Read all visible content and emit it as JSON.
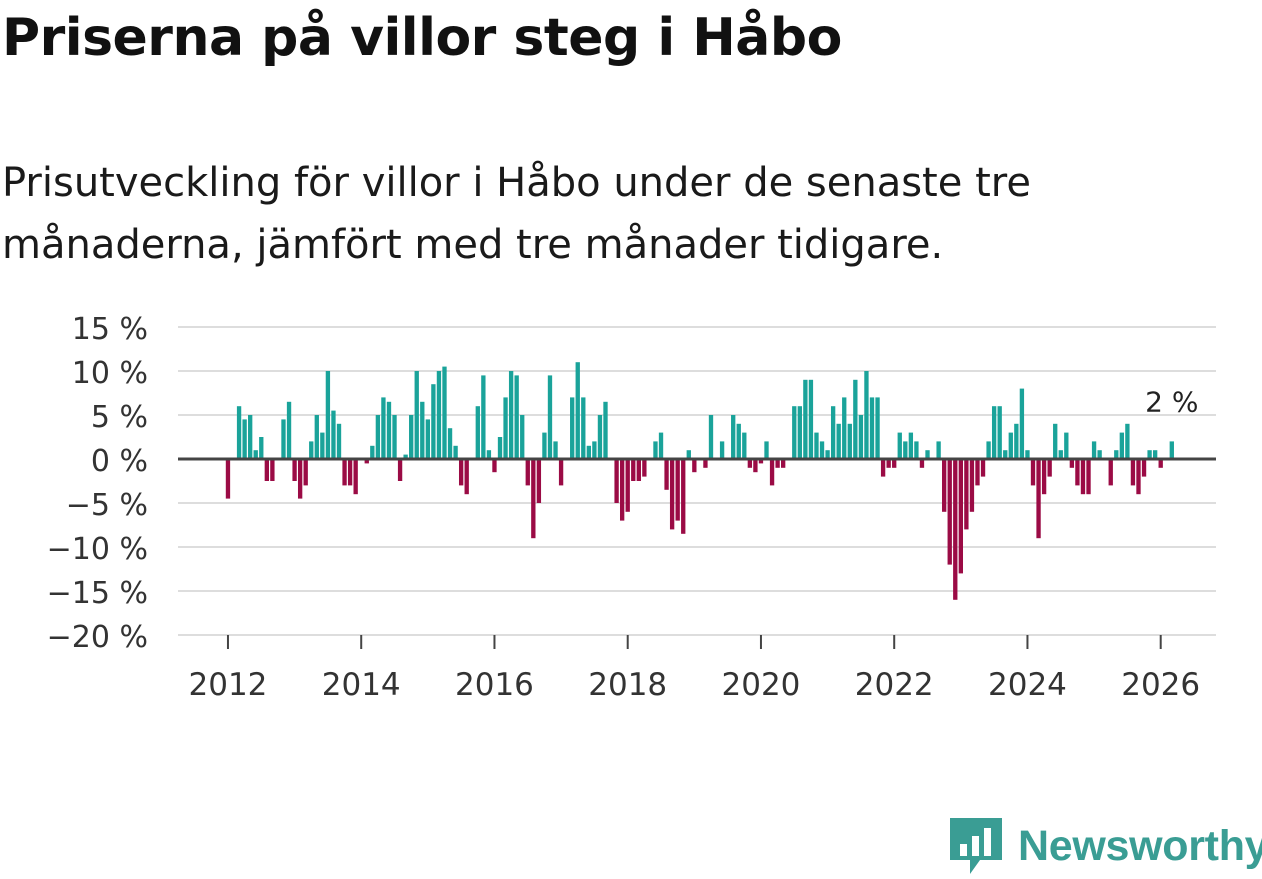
{
  "title": "Priserna på villor steg i Håbo",
  "subtitle": "Prisutveckling för villor i Håbo under de senaste tre månaderna, jämfört med tre månader tidigare.",
  "brand": "Newsworthy",
  "colors": {
    "positive": "#1aa39a",
    "negative": "#9b0b45",
    "grid": "#dddddd",
    "zero_line": "#444444",
    "brand": "#3a9d94"
  },
  "chart_data": {
    "type": "bar",
    "title": "Priserna på villor steg i Håbo",
    "xlabel": "",
    "ylabel": "",
    "ylim": [
      -20,
      15
    ],
    "xlim": [
      2011.25,
      2026.83
    ],
    "y_ticks": [
      {
        "value": 15,
        "label": "15 %"
      },
      {
        "value": 10,
        "label": "10 %"
      },
      {
        "value": 5,
        "label": "5 %"
      },
      {
        "value": 0,
        "label": "0 %"
      },
      {
        "value": -5,
        "label": "−5 %"
      },
      {
        "value": -10,
        "label": "−10 %"
      },
      {
        "value": -15,
        "label": "−15 %"
      },
      {
        "value": -20,
        "label": "−20 %"
      }
    ],
    "x_ticks": [
      {
        "value": 2012,
        "label": "2012"
      },
      {
        "value": 2014,
        "label": "2014"
      },
      {
        "value": 2016,
        "label": "2016"
      },
      {
        "value": 2018,
        "label": "2018"
      },
      {
        "value": 2020,
        "label": "2020"
      },
      {
        "value": 2022,
        "label": "2022"
      },
      {
        "value": 2024,
        "label": "2024"
      },
      {
        "value": 2026,
        "label": "2026"
      }
    ],
    "start": "2012-01",
    "values": [
      -4.5,
      0,
      6,
      4.5,
      5,
      1,
      2.5,
      -2.5,
      -2.5,
      0,
      4.5,
      6.5,
      -2.5,
      -4.5,
      -3,
      2,
      5,
      3,
      10,
      5.5,
      4,
      -3,
      -3,
      -4,
      0,
      -0.5,
      1.5,
      5,
      7,
      6.5,
      5,
      -2.5,
      0.5,
      5,
      10,
      6.5,
      4.5,
      8.5,
      10,
      10.5,
      3.5,
      1.5,
      -3,
      -4,
      0,
      6,
      9.5,
      1,
      -1.5,
      2.5,
      7,
      10,
      9.5,
      5,
      -3,
      -9,
      -5,
      3,
      9.5,
      2,
      -3,
      0,
      7,
      11,
      7,
      1.5,
      2,
      5,
      6.5,
      0,
      -5,
      -7,
      -6,
      -2.5,
      -2.5,
      -2,
      0,
      2,
      3,
      -3.5,
      -8,
      -7,
      -8.5,
      1,
      -1.5,
      0,
      -1,
      5,
      0,
      2,
      0,
      5,
      4,
      3,
      -1,
      -1.5,
      -0.5,
      2,
      -3,
      -1,
      -1,
      0,
      6,
      6,
      9,
      9,
      3,
      2,
      1,
      6,
      4,
      7,
      4,
      9,
      5,
      10,
      7,
      7,
      -2,
      -1,
      -1,
      3,
      2,
      3,
      2,
      -1,
      1,
      0,
      2,
      -6,
      -12,
      -16,
      -13,
      -8,
      -6,
      -3,
      -2,
      2,
      6,
      6,
      1,
      3,
      4,
      8,
      1,
      -3,
      -9,
      -4,
      -2,
      4,
      1,
      3,
      -1,
      -3,
      -4,
      -4,
      2,
      1,
      0,
      -3,
      1,
      3,
      4,
      -3,
      -4,
      -2,
      1,
      1,
      -1,
      0,
      2
    ],
    "last_label": "2 %"
  }
}
